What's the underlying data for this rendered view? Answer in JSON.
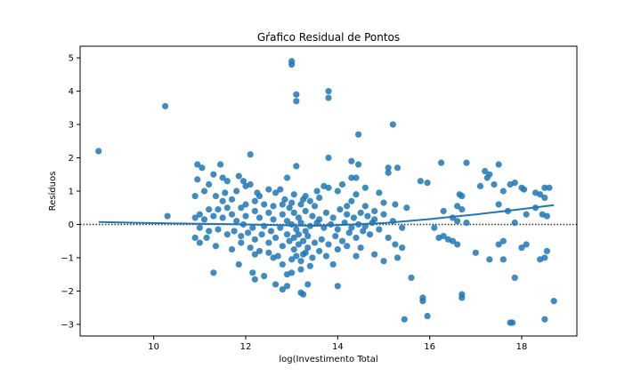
{
  "chart_data": {
    "type": "scatter",
    "title": "Gŕafico Residual de Pontos",
    "xlabel": "log(Investimento Total",
    "ylabel": "Resíduos",
    "xlim": [
      8.4,
      19.2
    ],
    "ylim": [
      -3.35,
      5.35
    ],
    "xticks": [
      10,
      12,
      14,
      16,
      18
    ],
    "yticks": [
      -3,
      -2,
      -1,
      0,
      1,
      2,
      3,
      4,
      5
    ],
    "grid": false,
    "reference_line": {
      "y": 0,
      "style": "dotted"
    },
    "colors": {
      "points": "#1f77b4",
      "trend": "#1f77b4",
      "reference": "#333333"
    },
    "trend_line": {
      "x": [
        8.8,
        10.0,
        11.0,
        12.0,
        13.0,
        13.5,
        14.0,
        15.0,
        16.0,
        17.0,
        18.0,
        18.7
      ],
      "y": [
        0.07,
        0.04,
        0.02,
        0.0,
        -0.03,
        -0.04,
        -0.02,
        0.04,
        0.16,
        0.3,
        0.46,
        0.58
      ]
    },
    "points": [
      {
        "x": 8.8,
        "y": 2.2
      },
      {
        "x": 10.25,
        "y": 3.55
      },
      {
        "x": 10.3,
        "y": 0.25
      },
      {
        "x": 13.0,
        "y": 4.9
      },
      {
        "x": 13.0,
        "y": 4.8
      },
      {
        "x": 13.1,
        "y": 3.9
      },
      {
        "x": 13.1,
        "y": 3.7
      },
      {
        "x": 13.8,
        "y": 4.0
      },
      {
        "x": 13.8,
        "y": 3.8
      },
      {
        "x": 14.45,
        "y": 2.7
      },
      {
        "x": 15.2,
        "y": 3.0
      },
      {
        "x": 12.1,
        "y": 2.1
      },
      {
        "x": 13.8,
        "y": 2.0
      },
      {
        "x": 14.3,
        "y": 1.9
      },
      {
        "x": 14.45,
        "y": 1.8
      },
      {
        "x": 15.1,
        "y": 1.7
      },
      {
        "x": 15.3,
        "y": 1.7
      },
      {
        "x": 13.1,
        "y": 1.75
      },
      {
        "x": 12.9,
        "y": 1.4
      },
      {
        "x": 14.3,
        "y": 1.4
      },
      {
        "x": 14.4,
        "y": 1.4
      },
      {
        "x": 15.1,
        "y": 1.55
      },
      {
        "x": 15.8,
        "y": 1.3
      },
      {
        "x": 15.95,
        "y": 1.25
      },
      {
        "x": 16.25,
        "y": 1.85
      },
      {
        "x": 16.8,
        "y": 1.85
      },
      {
        "x": 17.2,
        "y": 1.6
      },
      {
        "x": 17.3,
        "y": 1.5
      },
      {
        "x": 17.5,
        "y": 1.8
      },
      {
        "x": 17.25,
        "y": 1.4
      },
      {
        "x": 17.4,
        "y": 1.2
      },
      {
        "x": 17.1,
        "y": 1.15
      },
      {
        "x": 17.6,
        "y": 1.0
      },
      {
        "x": 17.85,
        "y": 1.25
      },
      {
        "x": 17.75,
        "y": 1.2
      },
      {
        "x": 18.05,
        "y": 1.05
      },
      {
        "x": 18.0,
        "y": 1.1
      },
      {
        "x": 18.5,
        "y": 1.1
      },
      {
        "x": 18.6,
        "y": 1.1
      },
      {
        "x": 18.4,
        "y": 0.9
      },
      {
        "x": 18.5,
        "y": 0.8
      },
      {
        "x": 18.3,
        "y": 0.95
      },
      {
        "x": 17.5,
        "y": 0.6
      },
      {
        "x": 17.7,
        "y": 0.4
      },
      {
        "x": 18.3,
        "y": 0.5
      },
      {
        "x": 18.45,
        "y": 0.3
      },
      {
        "x": 18.55,
        "y": 0.25
      },
      {
        "x": 18.1,
        "y": 0.3
      },
      {
        "x": 17.85,
        "y": 0.05
      },
      {
        "x": 17.6,
        "y": -0.5
      },
      {
        "x": 17.5,
        "y": -0.6
      },
      {
        "x": 18.1,
        "y": -0.6
      },
      {
        "x": 18.0,
        "y": -0.7
      },
      {
        "x": 18.55,
        "y": -0.8
      },
      {
        "x": 18.5,
        "y": -1.0
      },
      {
        "x": 18.4,
        "y": -1.05
      },
      {
        "x": 17.6,
        "y": -1.05
      },
      {
        "x": 17.3,
        "y": -1.05
      },
      {
        "x": 17.85,
        "y": -1.6
      },
      {
        "x": 18.7,
        "y": -2.3
      },
      {
        "x": 18.5,
        "y": -2.85
      },
      {
        "x": 17.8,
        "y": -2.95
      },
      {
        "x": 17.75,
        "y": -2.95
      },
      {
        "x": 16.65,
        "y": 0.9
      },
      {
        "x": 16.7,
        "y": 0.85
      },
      {
        "x": 16.6,
        "y": 0.55
      },
      {
        "x": 16.7,
        "y": 0.45
      },
      {
        "x": 16.3,
        "y": 0.4
      },
      {
        "x": 16.5,
        "y": 0.2
      },
      {
        "x": 16.6,
        "y": 0.1
      },
      {
        "x": 16.8,
        "y": 0.05
      },
      {
        "x": 16.1,
        "y": -0.1
      },
      {
        "x": 16.2,
        "y": -0.4
      },
      {
        "x": 16.4,
        "y": -0.45
      },
      {
        "x": 16.5,
        "y": -0.5
      },
      {
        "x": 16.6,
        "y": -0.6
      },
      {
        "x": 16.3,
        "y": -0.35
      },
      {
        "x": 17.0,
        "y": -0.85
      },
      {
        "x": 16.7,
        "y": -2.1
      },
      {
        "x": 16.7,
        "y": -2.2
      },
      {
        "x": 15.85,
        "y": -2.2
      },
      {
        "x": 15.85,
        "y": -2.3
      },
      {
        "x": 15.95,
        "y": -2.75
      },
      {
        "x": 15.45,
        "y": -2.85
      },
      {
        "x": 15.6,
        "y": -1.6
      },
      {
        "x": 15.3,
        "y": -1.0
      },
      {
        "x": 15.0,
        "y": -1.1
      },
      {
        "x": 15.4,
        "y": -0.7
      },
      {
        "x": 14.8,
        "y": -0.9
      },
      {
        "x": 14.4,
        "y": -0.95
      },
      {
        "x": 14.0,
        "y": -1.85
      },
      {
        "x": 13.9,
        "y": -1.2
      },
      {
        "x": 13.35,
        "y": -1.8
      },
      {
        "x": 13.25,
        "y": -2.1
      },
      {
        "x": 13.2,
        "y": -2.05
      },
      {
        "x": 12.9,
        "y": -1.85
      },
      {
        "x": 12.8,
        "y": -1.95
      },
      {
        "x": 12.65,
        "y": -1.8
      },
      {
        "x": 12.2,
        "y": -1.65
      },
      {
        "x": 12.15,
        "y": -1.45
      },
      {
        "x": 12.4,
        "y": -1.55
      },
      {
        "x": 11.85,
        "y": -1.2
      },
      {
        "x": 11.3,
        "y": -1.45
      },
      {
        "x": 12.9,
        "y": -1.5
      },
      {
        "x": 13.0,
        "y": -1.45
      },
      {
        "x": 13.2,
        "y": -1.35
      },
      {
        "x": 13.4,
        "y": -1.25
      },
      {
        "x": 12.8,
        "y": -1.2
      },
      {
        "x": 12.6,
        "y": -1.0
      },
      {
        "x": 12.2,
        "y": -0.9
      },
      {
        "x": 11.7,
        "y": -0.75
      },
      {
        "x": 11.35,
        "y": -0.65
      },
      {
        "x": 11.0,
        "y": -0.55
      },
      {
        "x": 11.15,
        "y": -0.4
      },
      {
        "x": 10.9,
        "y": -0.4
      },
      {
        "x": 10.95,
        "y": 1.8
      },
      {
        "x": 11.05,
        "y": 1.7
      },
      {
        "x": 11.3,
        "y": 1.5
      },
      {
        "x": 11.45,
        "y": 1.8
      },
      {
        "x": 11.5,
        "y": 1.4
      },
      {
        "x": 11.6,
        "y": 1.3
      },
      {
        "x": 10.95,
        "y": 1.35
      },
      {
        "x": 11.2,
        "y": 1.2
      },
      {
        "x": 11.1,
        "y": 1.0
      },
      {
        "x": 10.9,
        "y": 0.85
      },
      {
        "x": 11.35,
        "y": 0.85
      },
      {
        "x": 11.5,
        "y": 0.7
      },
      {
        "x": 11.7,
        "y": 0.75
      },
      {
        "x": 11.8,
        "y": 1.0
      },
      {
        "x": 11.85,
        "y": 1.45
      },
      {
        "x": 11.95,
        "y": 1.3
      },
      {
        "x": 12.0,
        "y": 1.15
      },
      {
        "x": 12.1,
        "y": 1.2
      },
      {
        "x": 12.25,
        "y": 0.95
      },
      {
        "x": 12.5,
        "y": 1.05
      },
      {
        "x": 12.65,
        "y": 0.95
      },
      {
        "x": 12.75,
        "y": 1.05
      },
      {
        "x": 13.05,
        "y": 0.9
      },
      {
        "x": 13.3,
        "y": 0.85
      },
      {
        "x": 13.55,
        "y": 1.0
      },
      {
        "x": 13.7,
        "y": 1.15
      },
      {
        "x": 13.8,
        "y": 1.1
      },
      {
        "x": 14.0,
        "y": 1.0
      },
      {
        "x": 14.1,
        "y": 1.2
      },
      {
        "x": 14.6,
        "y": 1.1
      },
      {
        "x": 14.9,
        "y": 0.95
      },
      {
        "x": 15.0,
        "y": 0.65
      },
      {
        "x": 15.25,
        "y": 0.6
      },
      {
        "x": 15.5,
        "y": 0.5
      },
      {
        "x": 14.8,
        "y": 0.4
      },
      {
        "x": 14.3,
        "y": 0.7
      },
      {
        "x": 14.2,
        "y": 0.55
      },
      {
        "x": 13.5,
        "y": 0.55
      },
      {
        "x": 13.4,
        "y": 0.7
      },
      {
        "x": 13.2,
        "y": 0.6
      },
      {
        "x": 12.95,
        "y": 0.5
      },
      {
        "x": 12.8,
        "y": 0.6
      },
      {
        "x": 12.6,
        "y": 0.55
      },
      {
        "x": 12.4,
        "y": 0.6
      },
      {
        "x": 12.2,
        "y": 0.7
      },
      {
        "x": 12.0,
        "y": 0.6
      },
      {
        "x": 11.9,
        "y": 0.5
      },
      {
        "x": 11.6,
        "y": 0.5
      },
      {
        "x": 11.4,
        "y": 0.45
      },
      {
        "x": 11.2,
        "y": 0.45
      },
      {
        "x": 11.0,
        "y": 0.3
      },
      {
        "x": 10.9,
        "y": 0.2
      },
      {
        "x": 11.1,
        "y": 0.15
      },
      {
        "x": 11.3,
        "y": 0.25
      },
      {
        "x": 11.5,
        "y": 0.2
      },
      {
        "x": 11.7,
        "y": 0.3
      },
      {
        "x": 11.8,
        "y": 0.1
      },
      {
        "x": 12.0,
        "y": 0.25
      },
      {
        "x": 12.2,
        "y": 0.4
      },
      {
        "x": 12.3,
        "y": 0.2
      },
      {
        "x": 12.5,
        "y": 0.35
      },
      {
        "x": 12.6,
        "y": 0.15
      },
      {
        "x": 12.8,
        "y": 0.3
      },
      {
        "x": 12.9,
        "y": 0.1
      },
      {
        "x": 13.05,
        "y": 0.35
      },
      {
        "x": 13.15,
        "y": 0.2
      },
      {
        "x": 13.3,
        "y": 0.4
      },
      {
        "x": 13.45,
        "y": 0.25
      },
      {
        "x": 13.6,
        "y": 0.15
      },
      {
        "x": 13.75,
        "y": 0.35
      },
      {
        "x": 13.9,
        "y": 0.2
      },
      {
        "x": 14.05,
        "y": 0.45
      },
      {
        "x": 14.2,
        "y": 0.3
      },
      {
        "x": 14.35,
        "y": 0.2
      },
      {
        "x": 14.5,
        "y": 0.35
      },
      {
        "x": 14.65,
        "y": 0.25
      },
      {
        "x": 14.8,
        "y": 0.15
      },
      {
        "x": 15.0,
        "y": 0.3
      },
      {
        "x": 15.2,
        "y": 0.1
      },
      {
        "x": 15.4,
        "y": -0.1
      },
      {
        "x": 11.0,
        "y": -0.1
      },
      {
        "x": 11.2,
        "y": -0.2
      },
      {
        "x": 11.4,
        "y": -0.15
      },
      {
        "x": 11.6,
        "y": -0.3
      },
      {
        "x": 11.75,
        "y": -0.2
      },
      {
        "x": 11.9,
        "y": -0.35
      },
      {
        "x": 12.05,
        "y": -0.25
      },
      {
        "x": 12.2,
        "y": -0.45
      },
      {
        "x": 12.35,
        "y": -0.3
      },
      {
        "x": 12.5,
        "y": -0.55
      },
      {
        "x": 12.65,
        "y": -0.4
      },
      {
        "x": 12.8,
        "y": -0.65
      },
      {
        "x": 12.95,
        "y": -0.5
      },
      {
        "x": 13.05,
        "y": -0.75
      },
      {
        "x": 13.15,
        "y": -0.6
      },
      {
        "x": 13.25,
        "y": -0.9
      },
      {
        "x": 13.35,
        "y": -0.7
      },
      {
        "x": 13.5,
        "y": -0.55
      },
      {
        "x": 13.65,
        "y": -0.45
      },
      {
        "x": 13.8,
        "y": -0.6
      },
      {
        "x": 13.95,
        "y": -0.35
      },
      {
        "x": 14.1,
        "y": -0.5
      },
      {
        "x": 14.25,
        "y": -0.25
      },
      {
        "x": 14.4,
        "y": -0.4
      },
      {
        "x": 14.55,
        "y": -0.2
      },
      {
        "x": 14.7,
        "y": -0.3
      },
      {
        "x": 14.9,
        "y": -0.15
      },
      {
        "x": 15.1,
        "y": -0.4
      },
      {
        "x": 15.25,
        "y": -0.6
      },
      {
        "x": 11.9,
        "y": -0.55
      },
      {
        "x": 12.1,
        "y": -0.7
      },
      {
        "x": 12.3,
        "y": -0.8
      },
      {
        "x": 12.5,
        "y": -0.85
      },
      {
        "x": 12.7,
        "y": -0.95
      },
      {
        "x": 13.0,
        "y": -1.05
      },
      {
        "x": 13.1,
        "y": -0.95
      },
      {
        "x": 13.2,
        "y": -1.1
      },
      {
        "x": 13.3,
        "y": -0.85
      },
      {
        "x": 13.45,
        "y": -1.0
      },
      {
        "x": 13.6,
        "y": -0.8
      },
      {
        "x": 13.75,
        "y": -0.95
      },
      {
        "x": 14.0,
        "y": -0.75
      },
      {
        "x": 14.2,
        "y": -0.65
      },
      {
        "x": 14.5,
        "y": -0.7
      },
      {
        "x": 13.0,
        "y": 0.0
      },
      {
        "x": 13.1,
        "y": -0.15
      },
      {
        "x": 13.2,
        "y": 0.05
      },
      {
        "x": 13.3,
        "y": -0.2
      },
      {
        "x": 13.4,
        "y": -0.05
      },
      {
        "x": 12.9,
        "y": -0.3
      },
      {
        "x": 12.75,
        "y": -0.1
      },
      {
        "x": 12.55,
        "y": -0.2
      },
      {
        "x": 12.4,
        "y": -0.05
      },
      {
        "x": 12.15,
        "y": -0.1
      },
      {
        "x": 11.95,
        "y": 0.0
      },
      {
        "x": 13.55,
        "y": 0.05
      },
      {
        "x": 13.7,
        "y": -0.1
      },
      {
        "x": 13.85,
        "y": 0.0
      },
      {
        "x": 14.0,
        "y": -0.15
      },
      {
        "x": 14.15,
        "y": 0.05
      },
      {
        "x": 14.3,
        "y": -0.1
      },
      {
        "x": 14.45,
        "y": 0.0
      },
      {
        "x": 14.6,
        "y": -0.05
      },
      {
        "x": 14.75,
        "y": 0.05
      },
      {
        "x": 13.05,
        "y": -0.4
      },
      {
        "x": 13.15,
        "y": -0.3
      },
      {
        "x": 13.25,
        "y": -0.5
      },
      {
        "x": 13.35,
        "y": -0.35
      },
      {
        "x": 12.85,
        "y": 0.75
      },
      {
        "x": 13.0,
        "y": 0.65
      },
      {
        "x": 13.25,
        "y": 0.75
      },
      {
        "x": 13.6,
        "y": 0.8
      },
      {
        "x": 14.4,
        "y": 0.9
      },
      {
        "x": 14.6,
        "y": 0.55
      },
      {
        "x": 12.3,
        "y": 0.85
      },
      {
        "x": 11.55,
        "y": 0.95
      }
    ]
  }
}
